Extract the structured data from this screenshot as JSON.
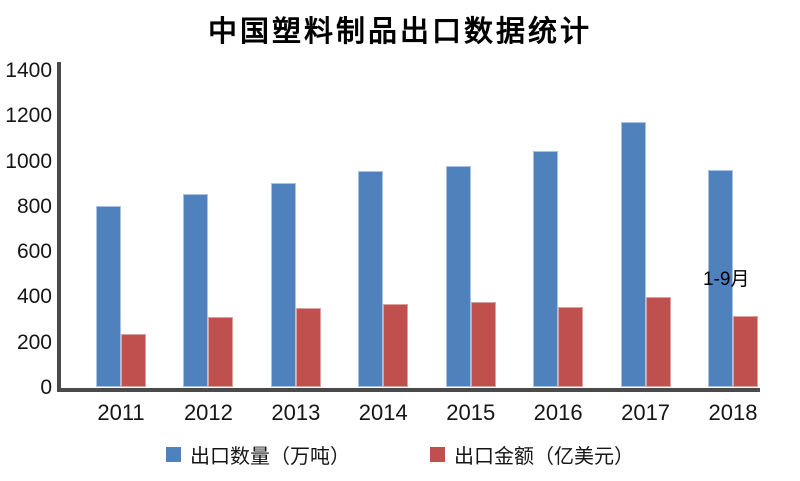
{
  "chart_data": {
    "type": "bar",
    "title": "中国塑料制品出口数据统计",
    "categories": [
      "2011",
      "2012",
      "2013",
      "2014",
      "2015",
      "2016",
      "2017",
      "2018"
    ],
    "series": [
      {
        "key": "export-volume",
        "name": "出口数量（万吨）",
        "color": "#4F81BD",
        "border_color": "#A9C2E0",
        "values": [
          798,
          852,
          900,
          955,
          978,
          1042,
          1172,
          957
        ]
      },
      {
        "key": "export-value",
        "name": "出口金额（亿美元）",
        "color": "#C0504D",
        "border_color": "#DCA09E",
        "values": [
          233,
          311,
          350,
          366,
          375,
          353,
          399,
          313
        ]
      }
    ],
    "xlabel": "",
    "ylabel": "",
    "ylim": [
      0,
      1400
    ],
    "ytick_step": 200,
    "yticks": [
      0,
      200,
      400,
      600,
      800,
      1000,
      1200,
      1400
    ],
    "grid": false,
    "legend_position": "bottom",
    "annotation": {
      "text": "1-9月",
      "target_category": "2018"
    },
    "axis_color": "#4A4A4A",
    "text_color": "#151515",
    "background_color": "#FFFFFF"
  }
}
